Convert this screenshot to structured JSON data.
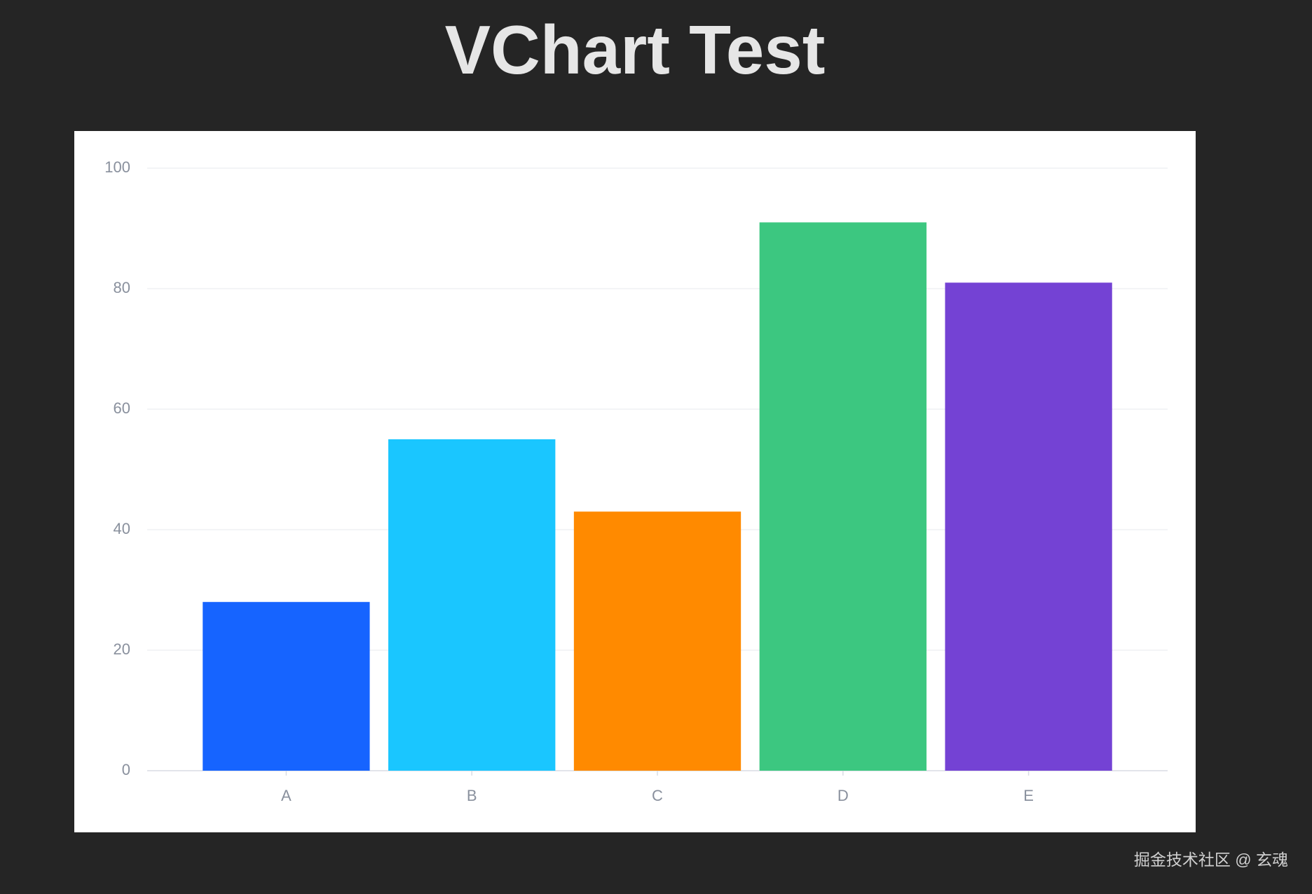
{
  "chart_data": {
    "type": "bar",
    "title": "VChart Test",
    "categories": [
      "A",
      "B",
      "C",
      "D",
      "E"
    ],
    "values": [
      28,
      55,
      43,
      91,
      81
    ],
    "colors": [
      "#1664ff",
      "#1ac6ff",
      "#ff8a00",
      "#3cc780",
      "#7442d4"
    ],
    "ylim": [
      0,
      100
    ],
    "yticks": [
      0,
      20,
      40,
      60,
      80,
      100
    ],
    "grid": true
  },
  "watermark": "掘金技术社区 @ 玄魂"
}
